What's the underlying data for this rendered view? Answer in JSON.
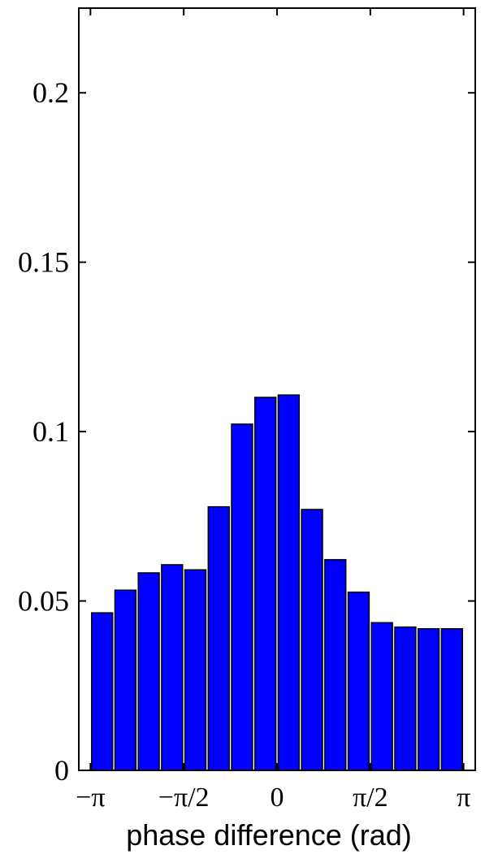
{
  "chart_data": {
    "type": "bar",
    "title": "",
    "xlabel": "phase difference (rad)",
    "ylabel": "",
    "ylim": [
      0,
      0.225
    ],
    "xlim": [
      -3.3379,
      3.3379
    ],
    "grid": false,
    "bar_color": "#0000ff",
    "bar_edge_color": "#000000",
    "y_ticks": [
      {
        "value": 0,
        "label": "0"
      },
      {
        "value": 0.05,
        "label": "0.05"
      },
      {
        "value": 0.1,
        "label": "0.1"
      },
      {
        "value": 0.15,
        "label": "0.15"
      },
      {
        "value": 0.2,
        "label": "0.2"
      }
    ],
    "x_ticks": [
      {
        "value": -3.1416,
        "label": "−π"
      },
      {
        "value": -1.5708,
        "label": "−π/2"
      },
      {
        "value": 0,
        "label": "0"
      },
      {
        "value": 1.5708,
        "label": "π/2"
      },
      {
        "value": 3.1416,
        "label": "π"
      }
    ],
    "x": [
      -2.9453,
      -2.5527,
      -2.16,
      -1.7671,
      -1.3744,
      -0.9817,
      -0.589,
      -0.1963,
      0.1963,
      0.589,
      0.9817,
      1.3744,
      1.7671,
      2.16,
      2.5527,
      2.9453
    ],
    "bar_width": 0.3534,
    "values": [
      0.0465,
      0.0532,
      0.0583,
      0.0607,
      0.0592,
      0.0778,
      0.1022,
      0.1101,
      0.1108,
      0.077,
      0.0622,
      0.0526,
      0.0436,
      0.0423,
      0.0418,
      0.0418
    ]
  }
}
